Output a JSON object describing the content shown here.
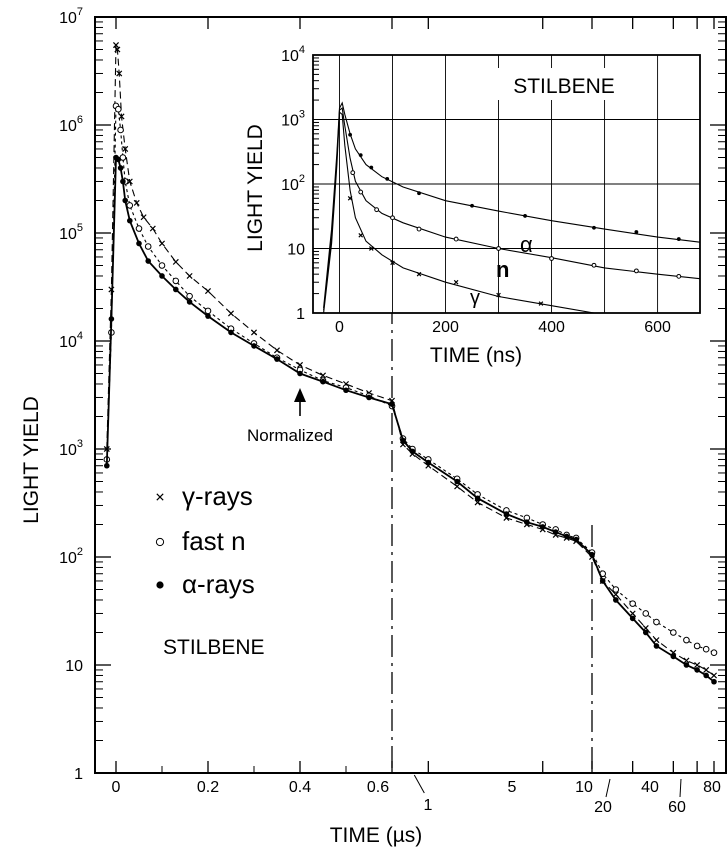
{
  "chart_data": [
    {
      "type": "scatter",
      "title": "",
      "xlabel": "TIME  (µs)",
      "ylabel": "LIGHT YIELD",
      "yscale": "log",
      "ylim": [
        1,
        10000000
      ],
      "y_ticks": [
        {
          "base": "1",
          "exp": ""
        },
        {
          "base": "10",
          "exp": ""
        },
        {
          "base": "10",
          "exp": "2"
        },
        {
          "base": "10",
          "exp": "3"
        },
        {
          "base": "10",
          "exp": "4"
        },
        {
          "base": "10",
          "exp": "5"
        },
        {
          "base": "10",
          "exp": "6"
        },
        {
          "base": "10",
          "exp": "7"
        }
      ],
      "x_ticks": [
        "0",
        "0.2",
        "0.4",
        "0.6",
        "1",
        "5",
        "10",
        "20",
        "40",
        "60",
        "80"
      ],
      "x_scale_segments": [
        {
          "range": [
            0,
            0.6
          ],
          "scale": "linear"
        },
        {
          "range": [
            0.6,
            10
          ],
          "scale": "log"
        },
        {
          "range": [
            10,
            80
          ],
          "scale": "log"
        }
      ],
      "annotations": {
        "normalized": "Normalized",
        "material": "STILBENE"
      },
      "legend": {
        "placement": "center-left",
        "entries": [
          {
            "marker": "×",
            "label": "γ-rays"
          },
          {
            "marker": "○",
            "label": "fast n"
          },
          {
            "marker": "●",
            "label": "α-rays"
          }
        ]
      },
      "series": [
        {
          "label": "γ-rays",
          "marker": "cross",
          "points": [
            [
              -0.02,
              1000
            ],
            [
              -0.01,
              30000
            ],
            [
              0,
              5500000
            ],
            [
              0.003,
              5000000
            ],
            [
              0.007,
              3000000
            ],
            [
              0.012,
              1200000
            ],
            [
              0.02,
              600000
            ],
            [
              0.03,
              300000
            ],
            [
              0.045,
              190000
            ],
            [
              0.06,
              140000
            ],
            [
              0.08,
              110000
            ],
            [
              0.1,
              80000
            ],
            [
              0.13,
              54000
            ],
            [
              0.16,
              40000
            ],
            [
              0.2,
              29000
            ],
            [
              0.25,
              18000
            ],
            [
              0.3,
              12000
            ],
            [
              0.35,
              8200
            ],
            [
              0.4,
              6000
            ],
            [
              0.45,
              4800
            ],
            [
              0.5,
              4000
            ],
            [
              0.55,
              3300
            ],
            [
              0.6,
              2800
            ],
            [
              0.7,
              1100
            ],
            [
              0.8,
              900
            ],
            [
              1,
              700
            ],
            [
              1.5,
              450
            ],
            [
              2,
              320
            ],
            [
              3,
              230
            ],
            [
              4,
              200
            ],
            [
              5,
              180
            ],
            [
              6,
              160
            ],
            [
              7,
              150
            ],
            [
              8,
              140
            ],
            [
              10,
              100
            ],
            [
              12,
              60
            ],
            [
              15,
              45
            ],
            [
              20,
              30
            ],
            [
              25,
              22
            ],
            [
              30,
              17
            ],
            [
              40,
              13
            ],
            [
              50,
              11
            ],
            [
              60,
              10
            ],
            [
              70,
              9
            ],
            [
              80,
              8
            ]
          ]
        },
        {
          "label": "fast n",
          "marker": "open-circle",
          "points": [
            [
              -0.02,
              800
            ],
            [
              -0.01,
              12000
            ],
            [
              0,
              1500000
            ],
            [
              0.005,
              1400000
            ],
            [
              0.01,
              900000
            ],
            [
              0.015,
              500000
            ],
            [
              0.02,
              300000
            ],
            [
              0.03,
              180000
            ],
            [
              0.05,
              110000
            ],
            [
              0.07,
              75000
            ],
            [
              0.1,
              50000
            ],
            [
              0.13,
              36000
            ],
            [
              0.16,
              26000
            ],
            [
              0.2,
              19000
            ],
            [
              0.25,
              13000
            ],
            [
              0.3,
              9500
            ],
            [
              0.35,
              7000
            ],
            [
              0.4,
              5400
            ],
            [
              0.45,
              4300
            ],
            [
              0.5,
              3700
            ],
            [
              0.55,
              3100
            ],
            [
              0.6,
              2500
            ],
            [
              0.7,
              1250
            ],
            [
              0.8,
              1000
            ],
            [
              1,
              800
            ],
            [
              1.5,
              530
            ],
            [
              2,
              380
            ],
            [
              3,
              270
            ],
            [
              4,
              230
            ],
            [
              5,
              200
            ],
            [
              6,
              180
            ],
            [
              7,
              160
            ],
            [
              8,
              150
            ],
            [
              10,
              110
            ],
            [
              12,
              70
            ],
            [
              15,
              50
            ],
            [
              20,
              37
            ],
            [
              25,
              30
            ],
            [
              30,
              25
            ],
            [
              40,
              20
            ],
            [
              50,
              17
            ],
            [
              60,
              15
            ],
            [
              70,
              14
            ],
            [
              80,
              13
            ]
          ]
        },
        {
          "label": "α-rays",
          "marker": "filled-circle",
          "points": [
            [
              -0.02,
              700
            ],
            [
              -0.01,
              16000
            ],
            [
              0,
              500000
            ],
            [
              0.005,
              480000
            ],
            [
              0.01,
              400000
            ],
            [
              0.015,
              300000
            ],
            [
              0.02,
              200000
            ],
            [
              0.03,
              130000
            ],
            [
              0.05,
              80000
            ],
            [
              0.07,
              55000
            ],
            [
              0.1,
              40000
            ],
            [
              0.13,
              30000
            ],
            [
              0.16,
              23000
            ],
            [
              0.2,
              17000
            ],
            [
              0.25,
              12000
            ],
            [
              0.3,
              9000
            ],
            [
              0.35,
              6800
            ],
            [
              0.4,
              5000
            ],
            [
              0.45,
              4200
            ],
            [
              0.5,
              3500
            ],
            [
              0.55,
              3000
            ],
            [
              0.6,
              2600
            ],
            [
              0.7,
              1200
            ],
            [
              0.8,
              950
            ],
            [
              1,
              750
            ],
            [
              1.5,
              500
            ],
            [
              2,
              350
            ],
            [
              3,
              250
            ],
            [
              4,
              210
            ],
            [
              5,
              190
            ],
            [
              6,
              170
            ],
            [
              7,
              155
            ],
            [
              8,
              145
            ],
            [
              10,
              105
            ],
            [
              12,
              60
            ],
            [
              15,
              40
            ],
            [
              20,
              27
            ],
            [
              25,
              20
            ],
            [
              30,
              15
            ],
            [
              40,
              12
            ],
            [
              50,
              10
            ],
            [
              60,
              9
            ],
            [
              70,
              8
            ],
            [
              80,
              7
            ]
          ]
        }
      ]
    },
    {
      "type": "line",
      "title": "STILBENE",
      "xlabel": "TIME  (ns)",
      "ylabel": "LIGHT YIELD",
      "yscale": "log",
      "xlim": [
        -50,
        680
      ],
      "ylim": [
        1,
        10000
      ],
      "grid": true,
      "x_ticks": [
        "0",
        "200",
        "400",
        "600"
      ],
      "y_ticks": [
        {
          "base": "1",
          "exp": ""
        },
        {
          "base": "10",
          "exp": ""
        },
        {
          "base": "10",
          "exp": "2"
        },
        {
          "base": "10",
          "exp": "3"
        },
        {
          "base": "10",
          "exp": "4"
        }
      ],
      "series": [
        {
          "name": "α",
          "marker": "dot",
          "curve": [
            [
              -30,
              1.2
            ],
            [
              -15,
              20
            ],
            [
              -5,
              300
            ],
            [
              0,
              1500
            ],
            [
              5,
              1800
            ],
            [
              10,
              1200
            ],
            [
              20,
              600
            ],
            [
              30,
              350
            ],
            [
              50,
              200
            ],
            [
              80,
              130
            ],
            [
              120,
              90
            ],
            [
              200,
              55
            ],
            [
              300,
              38
            ],
            [
              400,
              27
            ],
            [
              500,
              20
            ],
            [
              600,
              15
            ],
            [
              680,
              12.5
            ]
          ],
          "points": [
            [
              20,
              580
            ],
            [
              40,
              280
            ],
            [
              60,
              180
            ],
            [
              90,
              120
            ],
            [
              150,
              72
            ],
            [
              250,
              46
            ],
            [
              350,
              32
            ],
            [
              480,
              21
            ],
            [
              560,
              18
            ],
            [
              640,
              14
            ]
          ]
        },
        {
          "name": "n",
          "marker": "open-circle",
          "curve": [
            [
              -30,
              1.1
            ],
            [
              -15,
              15
            ],
            [
              -5,
              250
            ],
            [
              0,
              1400
            ],
            [
              5,
              1500
            ],
            [
              10,
              800
            ],
            [
              20,
              250
            ],
            [
              30,
              110
            ],
            [
              50,
              55
            ],
            [
              80,
              35
            ],
            [
              120,
              25
            ],
            [
              200,
              15
            ],
            [
              300,
              10
            ],
            [
              400,
              7.2
            ],
            [
              500,
              5
            ],
            [
              600,
              4
            ],
            [
              680,
              3.4
            ]
          ],
          "points": [
            [
              25,
              150
            ],
            [
              40,
              75
            ],
            [
              70,
              40
            ],
            [
              100,
              30
            ],
            [
              150,
              20
            ],
            [
              220,
              14
            ],
            [
              300,
              10
            ],
            [
              400,
              7
            ],
            [
              480,
              5.5
            ],
            [
              560,
              4.5
            ],
            [
              640,
              3.7
            ]
          ]
        },
        {
          "name": "γ",
          "marker": "cross",
          "curve": [
            [
              -30,
              1
            ],
            [
              -15,
              12
            ],
            [
              -5,
              200
            ],
            [
              0,
              1300
            ],
            [
              5,
              1200
            ],
            [
              10,
              400
            ],
            [
              20,
              80
            ],
            [
              30,
              30
            ],
            [
              50,
              13
            ],
            [
              80,
              8
            ],
            [
              120,
              5
            ],
            [
              200,
              3
            ],
            [
              300,
              1.8
            ],
            [
              400,
              1.3
            ],
            [
              480,
              1
            ]
          ],
          "points": [
            [
              20,
              60
            ],
            [
              40,
              16
            ],
            [
              60,
              10
            ],
            [
              100,
              6
            ],
            [
              150,
              4
            ],
            [
              220,
              3
            ],
            [
              300,
              1.9
            ],
            [
              380,
              1.4
            ]
          ]
        }
      ]
    }
  ]
}
